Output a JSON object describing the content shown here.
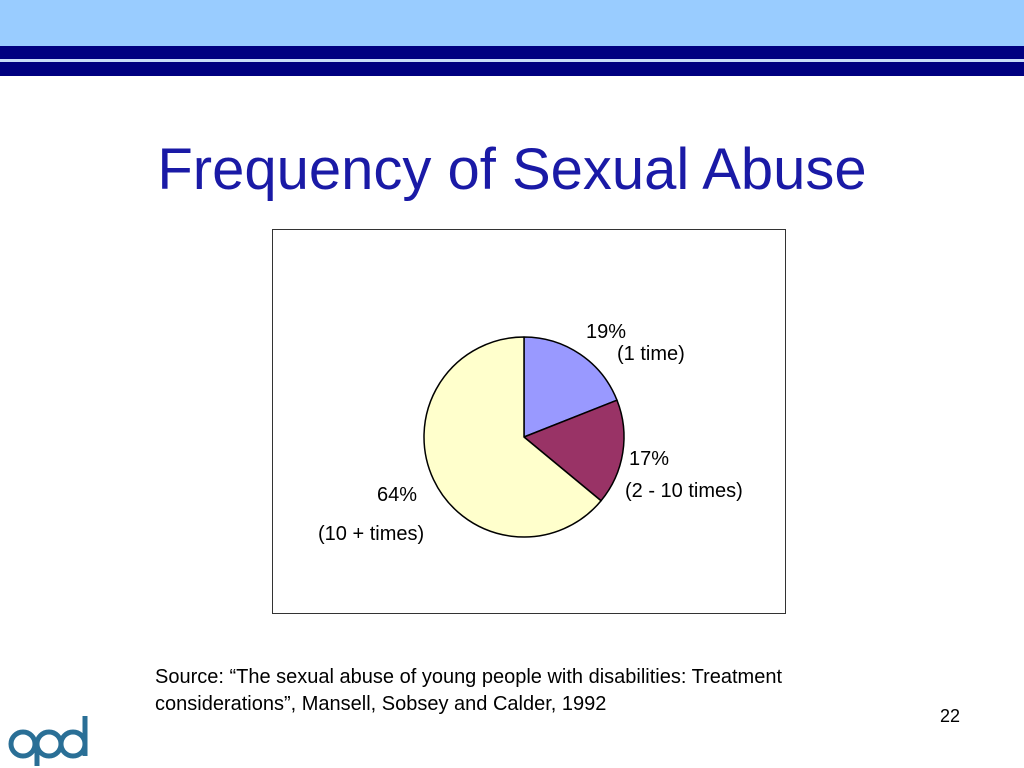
{
  "slide": {
    "title": "Frequency of Sexual Abuse",
    "source_line1": "Source:  “The sexual abuse of young people with disabilities: Treatment",
    "source_line2": "considerations”, Mansell, Sobsey and Calder, 1992",
    "page_number": "22",
    "logo_text": "opd"
  },
  "colors": {
    "band_light": "#99ccff",
    "band_dark": "#000080",
    "title": "#1a1aa6",
    "logo": "#2a6f96"
  },
  "chart_data": {
    "type": "pie",
    "title": "",
    "start_angle_deg": 0,
    "direction": "clockwise",
    "slices": [
      {
        "value": 19,
        "pct_label": "19%",
        "desc_label": "(1 time)",
        "color": "#9999ff"
      },
      {
        "value": 17,
        "pct_label": "17%",
        "desc_label": "(2 - 10 times)",
        "color": "#993366"
      },
      {
        "value": 64,
        "pct_label": "64%",
        "desc_label": "(10 + times)",
        "color": "#ffffcc"
      }
    ]
  }
}
